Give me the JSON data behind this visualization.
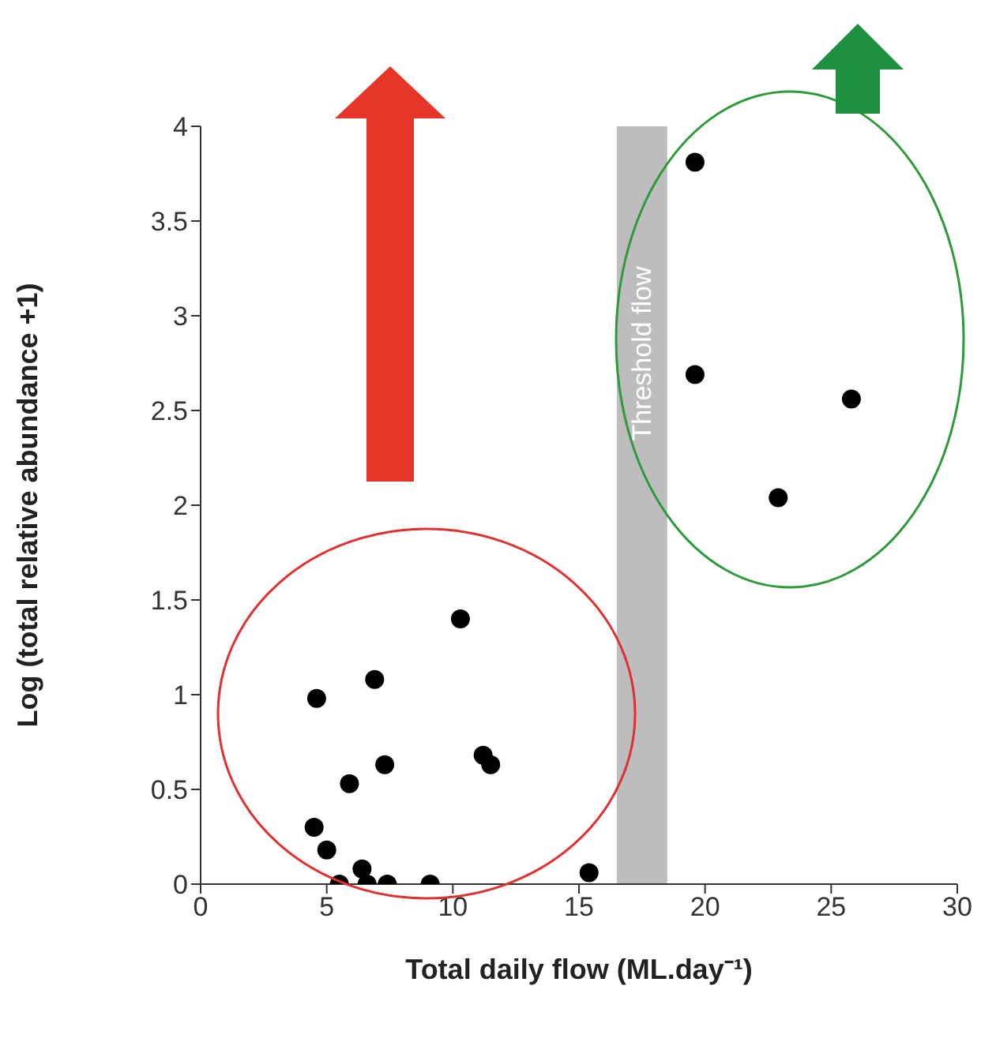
{
  "chart_data": {
    "type": "scatter",
    "xlabel": "Total daily flow (ML.day⁻¹)",
    "ylabel": "Log (total relative abundance +1)",
    "xlim": [
      0,
      30
    ],
    "xticks": [
      0,
      5,
      10,
      15,
      20,
      25,
      30
    ],
    "ylim": [
      0,
      4
    ],
    "yticks": [
      0,
      0.5,
      1,
      1.5,
      2,
      2.5,
      3,
      3.5,
      4
    ],
    "grid": false,
    "marker": "circle",
    "series": [
      {
        "color": "#000000",
        "x": [
          4.6,
          6.9,
          10.3,
          4.5,
          5.0,
          5.9,
          7.3,
          11.2,
          11.5,
          5.5,
          6.6,
          7.4,
          9.1,
          6.4,
          15.4,
          19.6,
          19.6,
          25.8,
          22.9
        ],
        "values": [
          0.98,
          1.08,
          1.4,
          0.3,
          0.18,
          0.53,
          0.63,
          0.68,
          0.63,
          0,
          0,
          0,
          0,
          0.08,
          0.06,
          3.81,
          2.69,
          2.56,
          2.04
        ]
      }
    ],
    "bands": [
      {
        "axis": "x",
        "from": 16.5,
        "to": 18.5,
        "label": "Threshold flow",
        "color": "#bdbdbd"
      }
    ]
  }
}
